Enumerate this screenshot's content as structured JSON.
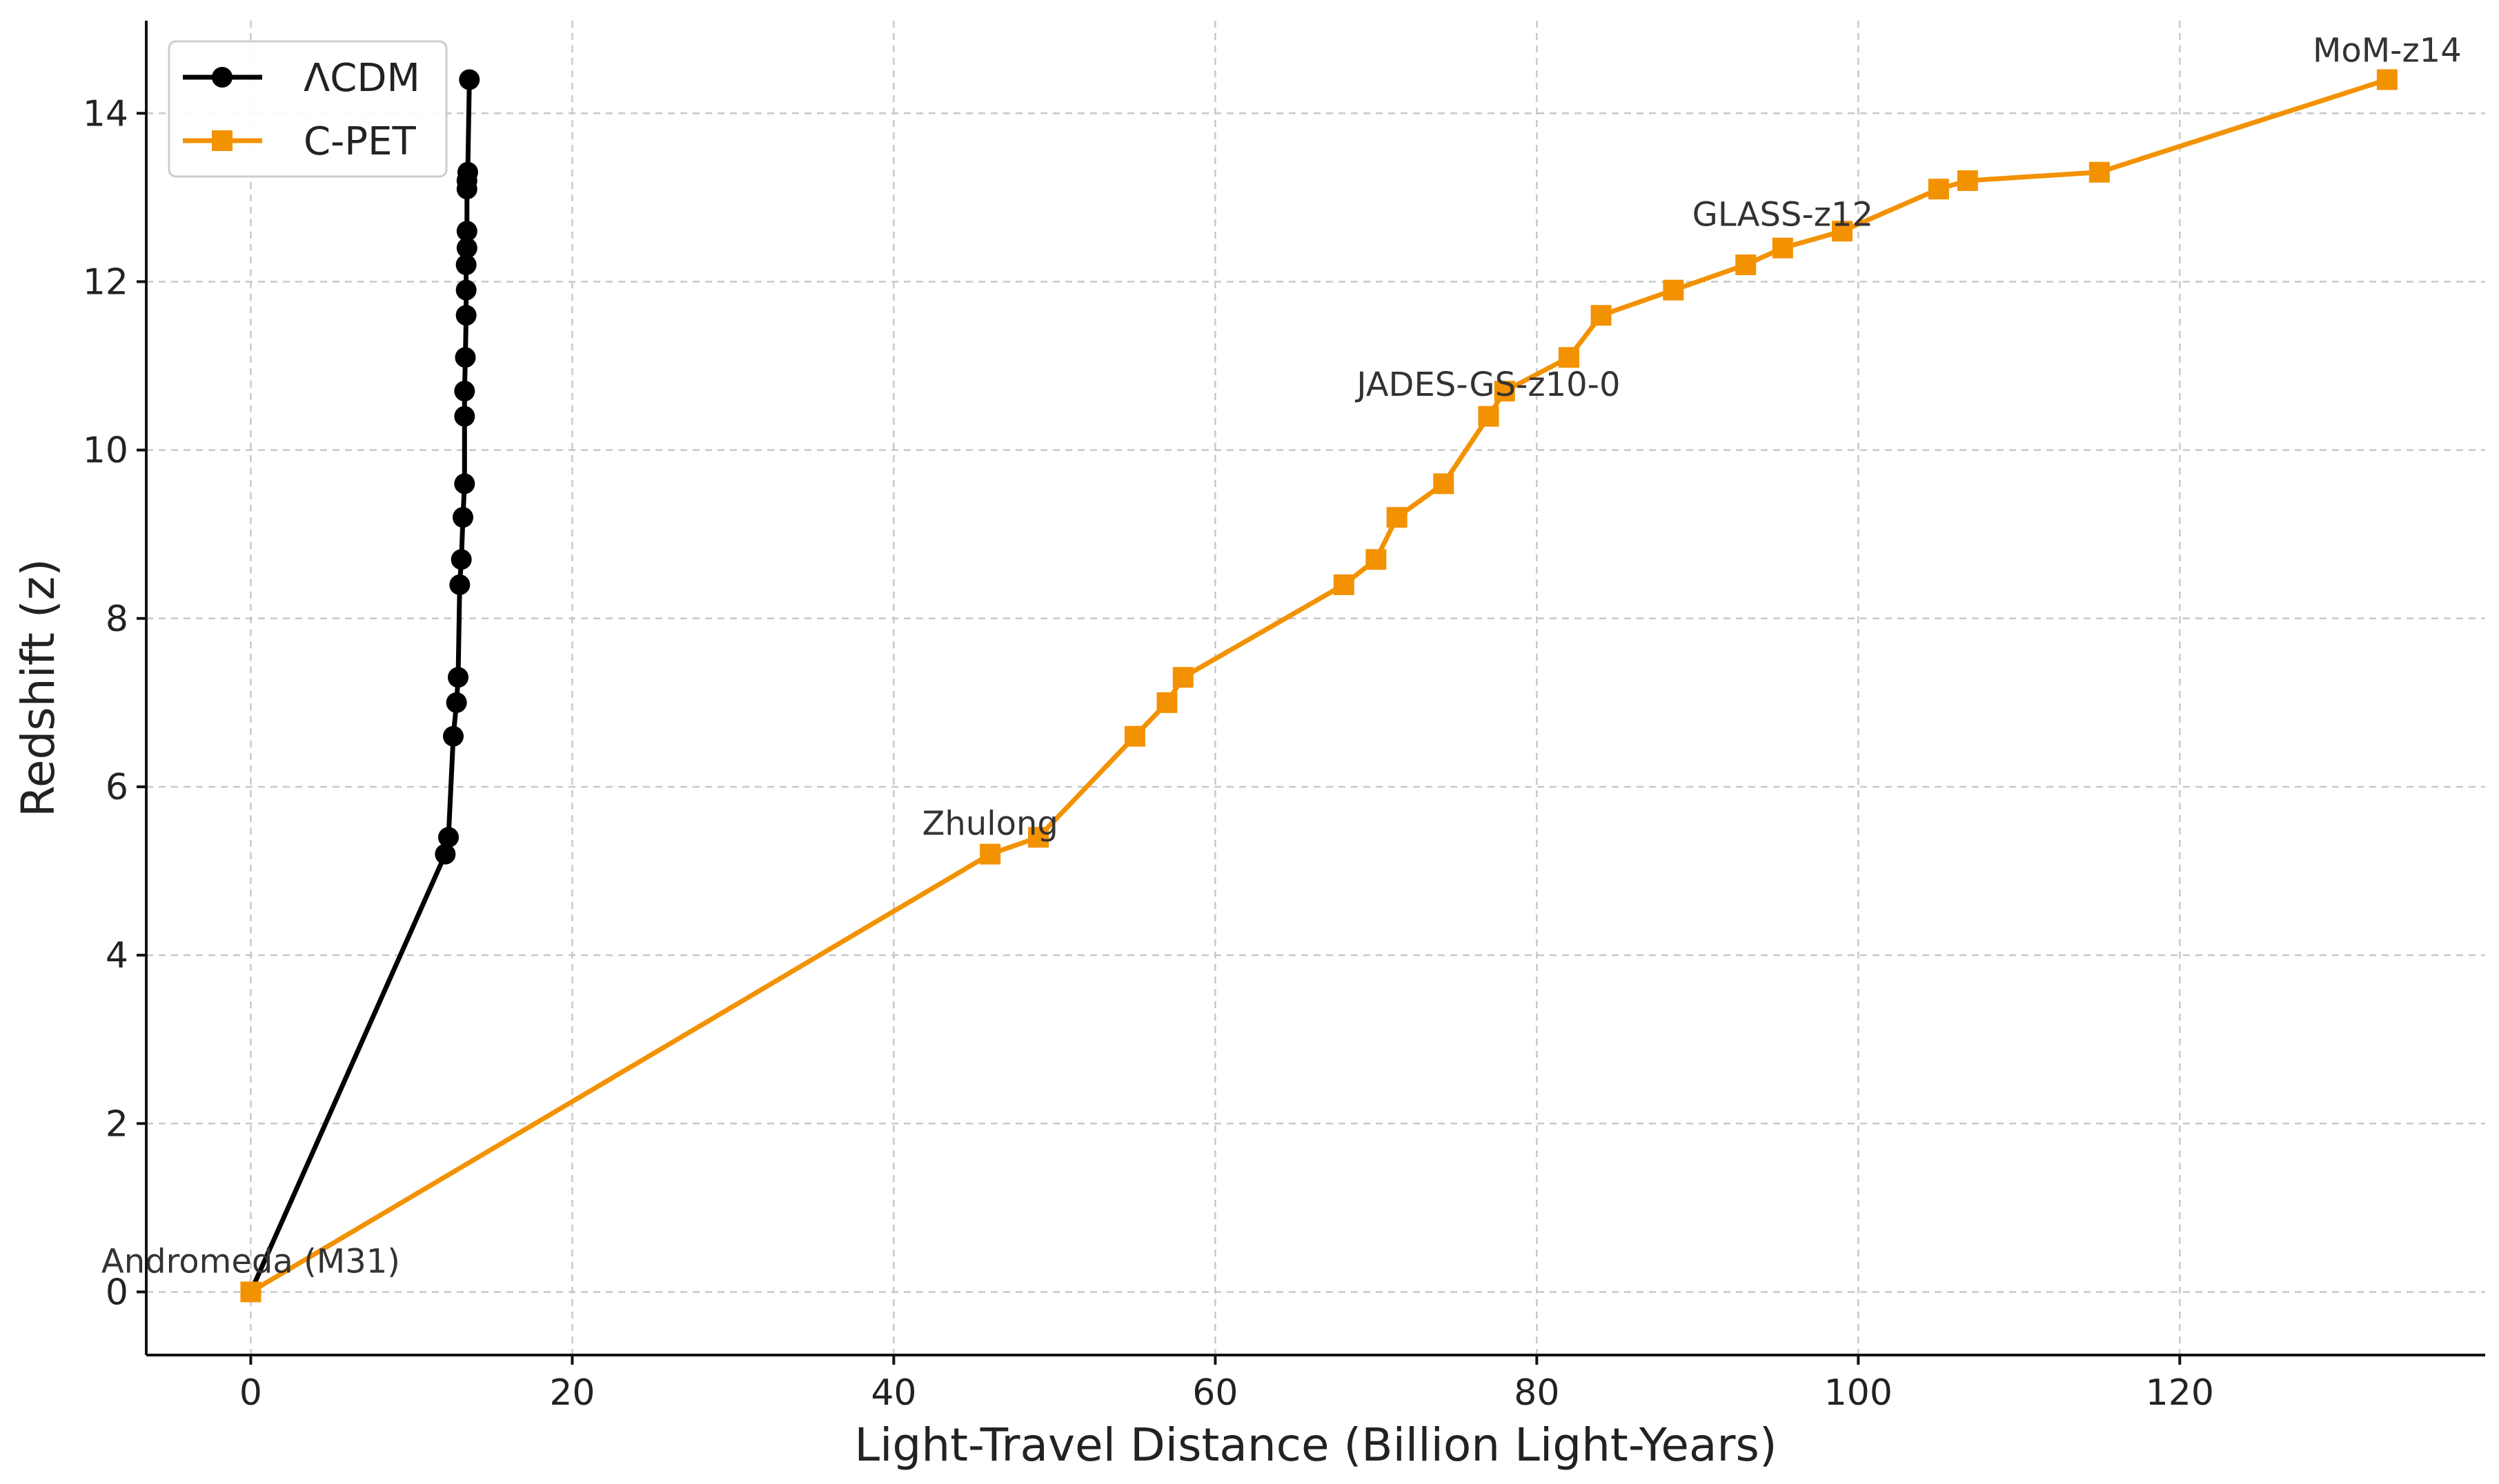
{
  "chart_data": {
    "type": "line",
    "title": "",
    "xlabel": "Light-Travel Distance (Billion Light-Years)",
    "ylabel": "Redshift (z)",
    "xlim": [
      -6.5,
      139
    ],
    "ylim": [
      -0.75,
      15.1
    ],
    "xticks": [
      0,
      20,
      40,
      60,
      80,
      100,
      120
    ],
    "yticks": [
      0,
      2,
      4,
      6,
      8,
      10,
      12,
      14
    ],
    "grid": true,
    "legend": "top-left",
    "series": [
      {
        "name": "ΛCDM",
        "color": "#000000",
        "marker": "circle",
        "points": [
          [
            0.0,
            0.0
          ],
          [
            12.1,
            5.2
          ],
          [
            12.3,
            5.4
          ],
          [
            12.6,
            6.6
          ],
          [
            12.8,
            7.0
          ],
          [
            12.9,
            7.3
          ],
          [
            13.0,
            8.4
          ],
          [
            13.1,
            8.7
          ],
          [
            13.2,
            9.2
          ],
          [
            13.3,
            9.6
          ],
          [
            13.3,
            10.4
          ],
          [
            13.3,
            10.7
          ],
          [
            13.35,
            11.1
          ],
          [
            13.4,
            11.6
          ],
          [
            13.4,
            11.9
          ],
          [
            13.4,
            12.2
          ],
          [
            13.45,
            12.4
          ],
          [
            13.45,
            12.6
          ],
          [
            13.45,
            13.1
          ],
          [
            13.45,
            13.2
          ],
          [
            13.5,
            13.3
          ],
          [
            13.6,
            14.4
          ]
        ]
      },
      {
        "name": "C-PET",
        "color": "#f39200",
        "marker": "square",
        "points": [
          [
            0.0,
            0.0
          ],
          [
            46.0,
            5.2
          ],
          [
            49.0,
            5.4
          ],
          [
            55.0,
            6.6
          ],
          [
            57.0,
            7.0
          ],
          [
            58.0,
            7.3
          ],
          [
            68.0,
            8.4
          ],
          [
            70.0,
            8.7
          ],
          [
            71.3,
            9.2
          ],
          [
            74.2,
            9.6
          ],
          [
            77.0,
            10.4
          ],
          [
            78.0,
            10.7
          ],
          [
            82.0,
            11.1
          ],
          [
            84.0,
            11.6
          ],
          [
            88.5,
            11.9
          ],
          [
            93.0,
            12.2
          ],
          [
            95.3,
            12.4
          ],
          [
            99.0,
            12.6
          ],
          [
            105.0,
            13.1
          ],
          [
            106.8,
            13.2
          ],
          [
            115.0,
            13.3
          ],
          [
            132.9,
            14.4
          ]
        ]
      }
    ],
    "annotations": [
      {
        "text": "Andromeda (M31)",
        "x": 0.0,
        "y": 0.0
      },
      {
        "text": "Zhulong",
        "x": 46.0,
        "y": 5.2
      },
      {
        "text": "JADES-GS-z10-0",
        "x": 77.0,
        "y": 10.4
      },
      {
        "text": "GLASS-z12",
        "x": 95.3,
        "y": 12.4
      },
      {
        "text": "MoM-z14",
        "x": 132.9,
        "y": 14.4
      }
    ]
  }
}
